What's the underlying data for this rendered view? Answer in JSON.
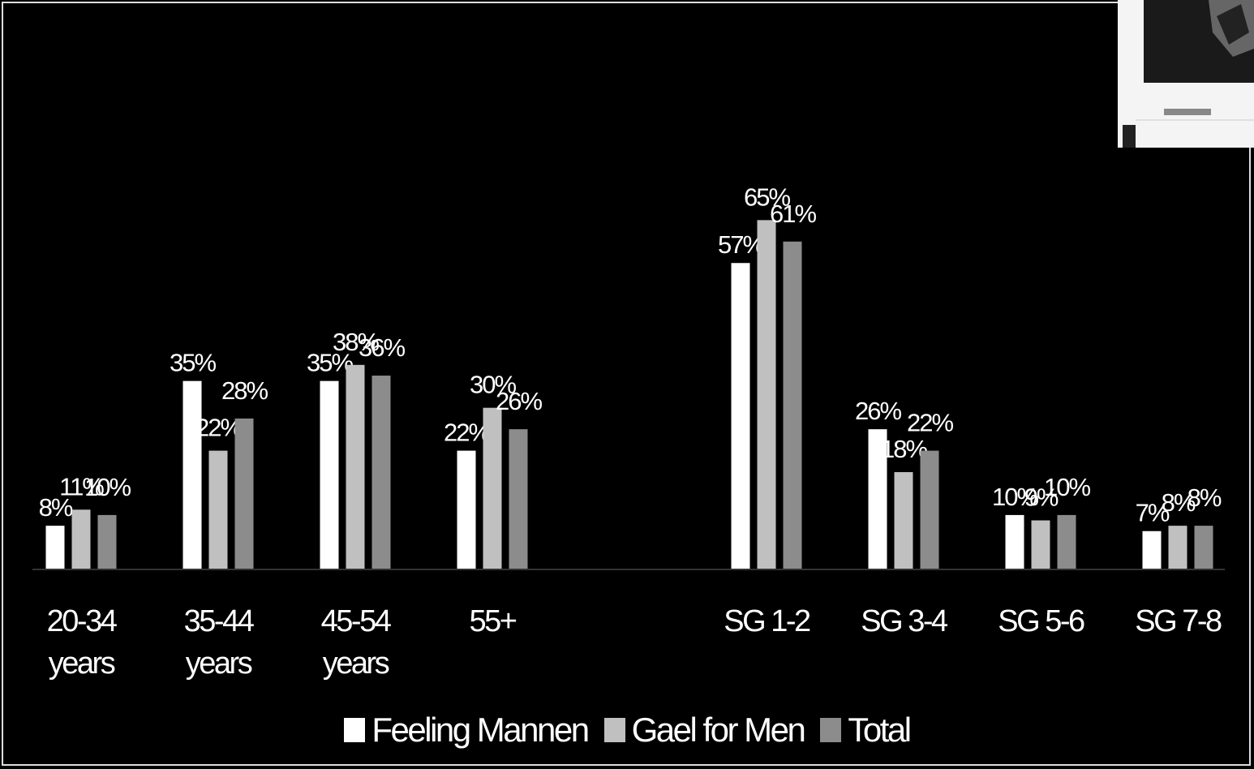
{
  "chart_data": {
    "type": "bar",
    "categories": [
      "20-34 years",
      "35-44 years",
      "45-54 years",
      "55+",
      "SG 1-2",
      "SG 3-4",
      "SG 5-6",
      "SG 7-8"
    ],
    "series": [
      {
        "name": "Feeling Mannen",
        "color": "#ffffff",
        "values": [
          8,
          35,
          35,
          22,
          57,
          26,
          10,
          7
        ],
        "value_labels": [
          "8%",
          "35%",
          "35%",
          "22%",
          "57%",
          "26%",
          "10%",
          "7%"
        ]
      },
      {
        "name": "Gael for Men",
        "color": "#c0c0c0",
        "values": [
          11,
          22,
          38,
          30,
          65,
          18,
          9,
          8
        ],
        "value_labels": [
          "11%",
          "22%",
          "38%",
          "30%",
          "65%",
          "18%",
          "9%",
          "8%"
        ]
      },
      {
        "name": "Total",
        "color": "#8c8c8c",
        "values": [
          10,
          28,
          36,
          26,
          61,
          22,
          10,
          8
        ],
        "value_labels": [
          "10%",
          "28%",
          "36%",
          "26%",
          "61%",
          "22%",
          "10%",
          "8%"
        ]
      }
    ],
    "legend": "bottom"
  }
}
